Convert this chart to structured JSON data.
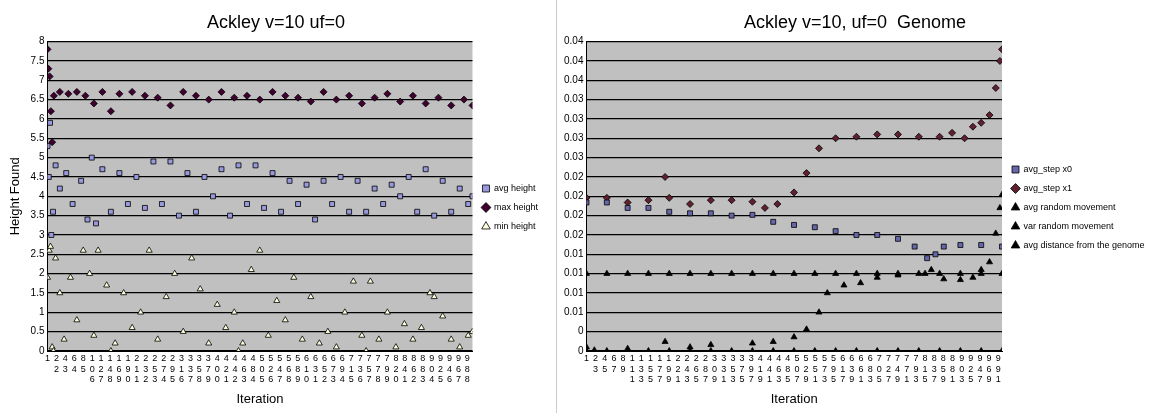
{
  "chart_data": [
    {
      "type": "scatter",
      "title": "Ackley v=10 uf=0",
      "xlabel": "Iteration",
      "ylabel": "Height Found",
      "grid": "y",
      "legend": "right",
      "xlim": [
        1,
        1000
      ],
      "xticks": [
        1,
        22,
        43,
        64,
        85,
        106,
        127,
        148,
        169,
        190,
        211,
        232,
        253,
        274,
        295,
        316,
        337,
        358,
        379,
        400,
        421,
        442,
        463,
        484,
        505,
        526,
        547,
        568,
        589,
        610,
        631,
        652,
        673,
        694,
        715,
        736,
        757,
        778,
        799,
        820,
        841,
        862,
        883,
        904,
        925,
        946,
        967,
        988
      ],
      "ylim": [
        0,
        8
      ],
      "yticks": [
        0,
        0.5,
        1,
        1.5,
        2,
        2.5,
        3,
        3.5,
        4,
        4.5,
        5,
        5.5,
        6,
        6.5,
        7,
        7.5,
        8
      ],
      "series": [
        {
          "name": "avg height",
          "color": "#9999dd",
          "marker": "square",
          "x": [
            1,
            4,
            7,
            10,
            14,
            20,
            30,
            45,
            60,
            80,
            95,
            105,
            115,
            130,
            150,
            170,
            190,
            210,
            230,
            250,
            270,
            290,
            310,
            330,
            350,
            370,
            390,
            410,
            430,
            450,
            470,
            490,
            510,
            530,
            550,
            570,
            590,
            610,
            630,
            650,
            670,
            690,
            710,
            730,
            750,
            770,
            790,
            810,
            830,
            850,
            870,
            890,
            910,
            930,
            950,
            970,
            990,
            1000
          ],
          "values": [
            5.3,
            4.5,
            5.9,
            3.0,
            3.6,
            4.8,
            4.2,
            4.6,
            3.8,
            4.4,
            3.4,
            5.0,
            3.3,
            4.7,
            3.6,
            4.6,
            3.8,
            4.5,
            3.7,
            4.9,
            3.8,
            4.9,
            3.5,
            4.6,
            3.6,
            4.5,
            4.0,
            4.7,
            3.5,
            4.8,
            3.8,
            4.8,
            3.7,
            4.6,
            3.6,
            4.4,
            3.8,
            4.3,
            3.4,
            4.4,
            3.8,
            4.5,
            3.6,
            4.4,
            3.6,
            4.2,
            3.8,
            4.3,
            4.0,
            4.5,
            3.6,
            4.7,
            3.5,
            4.4,
            3.6,
            4.2,
            3.8,
            4.0
          ]
        },
        {
          "name": "max height",
          "color": "#400030",
          "marker": "diamond",
          "x": [
            1,
            3,
            6,
            9,
            12,
            16,
            30,
            50,
            70,
            90,
            110,
            130,
            150,
            170,
            200,
            230,
            260,
            290,
            320,
            350,
            380,
            410,
            440,
            470,
            500,
            530,
            560,
            590,
            620,
            650,
            680,
            710,
            740,
            770,
            800,
            830,
            860,
            890,
            920,
            950,
            980,
            1000
          ],
          "values": [
            7.8,
            7.3,
            7.1,
            6.2,
            5.4,
            6.6,
            6.7,
            6.65,
            6.7,
            6.6,
            6.4,
            6.7,
            6.2,
            6.65,
            6.7,
            6.6,
            6.55,
            6.35,
            6.7,
            6.6,
            6.5,
            6.7,
            6.55,
            6.6,
            6.5,
            6.7,
            6.6,
            6.55,
            6.45,
            6.7,
            6.5,
            6.6,
            6.4,
            6.55,
            6.65,
            6.45,
            6.6,
            6.4,
            6.55,
            6.35,
            6.5,
            6.35
          ]
        },
        {
          "name": "min height",
          "color": "#ffffdd",
          "marker": "triangle",
          "x": [
            1,
            5,
            8,
            12,
            15,
            20,
            30,
            40,
            55,
            70,
            85,
            100,
            110,
            120,
            140,
            150,
            160,
            180,
            200,
            220,
            240,
            260,
            280,
            300,
            320,
            340,
            360,
            380,
            400,
            420,
            440,
            450,
            460,
            480,
            500,
            520,
            540,
            560,
            580,
            600,
            620,
            640,
            660,
            680,
            700,
            720,
            740,
            750,
            760,
            780,
            800,
            820,
            840,
            860,
            880,
            900,
            910,
            930,
            950,
            970,
            990,
            1000
          ],
          "values": [
            1.9,
            2.6,
            2.7,
            0.1,
            0,
            2.4,
            1.5,
            0.3,
            1.9,
            0.8,
            2.6,
            2.0,
            0.4,
            2.6,
            1.7,
            0,
            0.2,
            1.5,
            0.6,
            1.0,
            2.6,
            0.3,
            1.4,
            2.0,
            0.5,
            2.4,
            1.6,
            0.2,
            1.2,
            0.6,
            1.0,
            0,
            0.2,
            2.1,
            2.6,
            0.4,
            1.3,
            0.8,
            1.9,
            0.3,
            1.4,
            0.2,
            0.5,
            0.1,
            1.0,
            1.8,
            0.4,
            0,
            1.8,
            0.3,
            1.0,
            0.1,
            0.7,
            0.3,
            0.6,
            1.5,
            1.4,
            0.9,
            0.3,
            0.1,
            0.4,
            0.5
          ]
        }
      ]
    },
    {
      "type": "scatter",
      "title": "Ackley v=10, uf=0  Genome",
      "xlabel": "Iteration",
      "grid": "y",
      "legend": "right",
      "xlim": [
        1,
        1000
      ],
      "xticks": [
        1,
        23,
        45,
        67,
        89,
        111,
        133,
        155,
        177,
        199,
        221,
        243,
        265,
        287,
        309,
        331,
        353,
        375,
        397,
        419,
        441,
        463,
        485,
        507,
        529,
        551,
        573,
        595,
        617,
        639,
        661,
        683,
        705,
        727,
        749,
        771,
        793,
        815,
        837,
        859,
        881,
        903,
        925,
        947,
        969,
        991
      ],
      "ylim": [
        0,
        0.04
      ],
      "yticks": [
        {
          "value": 0,
          "label": "0"
        },
        {
          "value": 0.0025,
          "label": "0"
        },
        {
          "value": 0.005,
          "label": "0.01"
        },
        {
          "value": 0.0075,
          "label": "0.01"
        },
        {
          "value": 0.01,
          "label": "0.01"
        },
        {
          "value": 0.0125,
          "label": "0.01"
        },
        {
          "value": 0.015,
          "label": "0.02"
        },
        {
          "value": 0.0175,
          "label": "0.02"
        },
        {
          "value": 0.02,
          "label": "0.02"
        },
        {
          "value": 0.0225,
          "label": "0.02"
        },
        {
          "value": 0.025,
          "label": "0.03"
        },
        {
          "value": 0.0275,
          "label": "0.03"
        },
        {
          "value": 0.03,
          "label": "0.03"
        },
        {
          "value": 0.0325,
          "label": "0.03"
        },
        {
          "value": 0.035,
          "label": "0.04"
        },
        {
          "value": 0.0375,
          "label": "0.04"
        },
        {
          "value": 0.04,
          "label": "0.04"
        }
      ],
      "series": [
        {
          "name": "avg_step x0",
          "color": "#6666aa",
          "marker": "square",
          "x": [
            1,
            50,
            100,
            150,
            200,
            250,
            300,
            350,
            400,
            450,
            500,
            550,
            600,
            650,
            700,
            750,
            790,
            820,
            840,
            860,
            900,
            950,
            1000
          ],
          "values": [
            0.0192,
            0.0192,
            0.0185,
            0.0185,
            0.018,
            0.0178,
            0.0178,
            0.0175,
            0.0176,
            0.0167,
            0.0163,
            0.016,
            0.0155,
            0.015,
            0.015,
            0.0145,
            0.0135,
            0.012,
            0.0125,
            0.0135,
            0.0137,
            0.0137,
            0.0135
          ]
        },
        {
          "name": "avg_step x1",
          "color": "#602030",
          "marker": "diamond",
          "x": [
            1,
            50,
            100,
            150,
            190,
            200,
            250,
            300,
            350,
            400,
            430,
            460,
            500,
            530,
            560,
            600,
            650,
            700,
            750,
            800,
            850,
            880,
            910,
            930,
            950,
            970,
            985,
            995,
            1000
          ],
          "values": [
            0.0198,
            0.0198,
            0.0192,
            0.0195,
            0.0225,
            0.0198,
            0.019,
            0.0195,
            0.0195,
            0.0193,
            0.0185,
            0.019,
            0.0205,
            0.023,
            0.0262,
            0.0275,
            0.0277,
            0.028,
            0.028,
            0.0277,
            0.0277,
            0.0282,
            0.0275,
            0.029,
            0.0295,
            0.0305,
            0.034,
            0.0375,
            0.039
          ]
        },
        {
          "name": "avg random movement",
          "color": "#000000",
          "marker": "triangle",
          "x": [
            1,
            50,
            100,
            150,
            200,
            250,
            300,
            350,
            400,
            450,
            500,
            550,
            600,
            650,
            700,
            750,
            800,
            850,
            900,
            950,
            1000
          ],
          "values": [
            0.01,
            0.01,
            0.01,
            0.01,
            0.01,
            0.01,
            0.01,
            0.01,
            0.01,
            0.01,
            0.01,
            0.01,
            0.01,
            0.01,
            0.01,
            0.01,
            0.01,
            0.01,
            0.01,
            0.01,
            0.01
          ]
        },
        {
          "name": "var random movement",
          "color": "#000000",
          "marker": "triangle",
          "x": [
            1,
            50,
            150,
            200,
            250,
            300,
            350,
            400,
            450,
            500,
            550,
            600,
            650,
            700,
            750,
            800,
            850,
            900,
            950,
            1000
          ],
          "values": [
            0,
            0,
            0,
            0,
            0,
            0,
            0,
            0,
            0,
            0,
            0,
            0,
            0,
            0,
            0,
            0,
            0,
            0,
            0,
            0
          ]
        },
        {
          "name": "avg distance from the genome",
          "color": "#000000",
          "marker": "triangle",
          "x": [
            1,
            20,
            100,
            190,
            250,
            300,
            400,
            450,
            500,
            530,
            560,
            580,
            620,
            660,
            700,
            750,
            815,
            830,
            860,
            900,
            930,
            950,
            970,
            985,
            995,
            1000
          ],
          "values": [
            0.0005,
            0.0001,
            0.0003,
            0.0012,
            0.0005,
            0.0008,
            0.001,
            0.0012,
            0.0018,
            0.0028,
            0.005,
            0.0075,
            0.0085,
            0.0088,
            0.0095,
            0.0098,
            0.01,
            0.0105,
            0.0093,
            0.0092,
            0.0095,
            0.0105,
            0.0115,
            0.0152,
            0.0185,
            0.0202
          ]
        }
      ]
    }
  ]
}
